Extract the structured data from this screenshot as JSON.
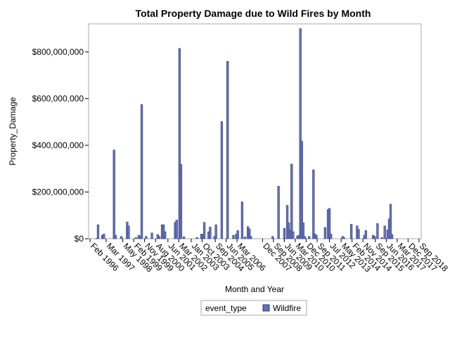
{
  "chart_data": {
    "type": "bar",
    "title": "Total Property Damage due to Wild Fires by Month",
    "xlabel": "Month and Year",
    "ylabel": "Property_Damage",
    "ylim": [
      0,
      920000000
    ],
    "y_ticks": [
      0,
      200000000,
      400000000,
      600000000,
      800000000
    ],
    "y_tick_labels": [
      "$0",
      "$200,000,000",
      "$400,000,000",
      "$600,000,000",
      "$800,000,000"
    ],
    "x_range": [
      1996.0,
      2018.85
    ],
    "x_tick_labels": [
      "Feb 1996",
      "Mar 1997",
      "May 1998",
      "Feb 1999",
      "Nov 1999",
      "Aug 2000",
      "Jun 2001",
      "Mar 2002",
      "Jan 2003",
      "Oct 2003",
      "Sep 2004",
      "Jun 2005",
      "Mar 2006",
      "Dec 2007",
      "Sep 2008",
      "Jun 2009",
      "Mar 2010",
      "Dec 2010",
      "Sep 2011",
      "Jul 2012",
      "May 2013",
      "Feb 2014",
      "Nov 2014",
      "Sep 2015",
      "Jun 2016",
      "Mar 2017",
      "Dec 2017",
      "Sep 2018"
    ],
    "x_tick_positions": [
      1996.1,
      1997.2,
      1998.35,
      1999.1,
      1999.85,
      2000.6,
      2001.45,
      2002.2,
      2003.05,
      2003.8,
      2004.7,
      2005.45,
      2006.2,
      2007.95,
      2008.7,
      2009.45,
      2010.2,
      2010.95,
      2011.7,
      2012.55,
      2013.35,
      2014.1,
      2014.85,
      2015.7,
      2016.45,
      2017.2,
      2017.95,
      2018.7
    ],
    "legend_title": "event_type",
    "legend": [
      "Wildfire"
    ],
    "series": [
      {
        "name": "Wildfire",
        "color": "#6672b0",
        "edge_color": "#2d3a7a",
        "points": [
          [
            1996.55,
            1000000
          ],
          [
            1996.65,
            60000000
          ],
          [
            1996.95,
            15000000
          ],
          [
            1997.05,
            20000000
          ],
          [
            1997.75,
            380000000
          ],
          [
            1997.85,
            15000000
          ],
          [
            1998.25,
            10000000
          ],
          [
            1998.65,
            72000000
          ],
          [
            1998.75,
            55000000
          ],
          [
            1999.25,
            5000000
          ],
          [
            1999.45,
            15000000
          ],
          [
            1999.55,
            10000000
          ],
          [
            1999.65,
            575000000
          ],
          [
            1999.95,
            10000000
          ],
          [
            2000.35,
            25000000
          ],
          [
            2000.75,
            18000000
          ],
          [
            2000.85,
            10000000
          ],
          [
            2001.05,
            60000000
          ],
          [
            2001.15,
            60000000
          ],
          [
            2001.25,
            30000000
          ],
          [
            2001.95,
            70000000
          ],
          [
            2002.05,
            80000000
          ],
          [
            2002.25,
            815000000
          ],
          [
            2002.35,
            318000000
          ],
          [
            2002.55,
            8000000
          ],
          [
            2003.45,
            5000000
          ],
          [
            2003.75,
            20000000
          ],
          [
            2003.85,
            18000000
          ],
          [
            2003.95,
            70000000
          ],
          [
            2004.25,
            30000000
          ],
          [
            2004.35,
            50000000
          ],
          [
            2004.65,
            10000000
          ],
          [
            2004.75,
            60000000
          ],
          [
            2005.15,
            502000000
          ],
          [
            2005.55,
            760000000
          ],
          [
            2005.95,
            15000000
          ],
          [
            2006.15,
            20000000
          ],
          [
            2006.25,
            35000000
          ],
          [
            2006.55,
            158000000
          ],
          [
            2006.75,
            8000000
          ],
          [
            2006.95,
            52000000
          ],
          [
            2007.05,
            42000000
          ],
          [
            2007.15,
            10000000
          ],
          [
            2008.65,
            10000000
          ],
          [
            2009.05,
            225000000
          ],
          [
            2009.45,
            45000000
          ],
          [
            2009.65,
            143000000
          ],
          [
            2009.75,
            68000000
          ],
          [
            2009.85,
            37000000
          ],
          [
            2009.95,
            320000000
          ],
          [
            2010.05,
            30000000
          ],
          [
            2010.35,
            12000000
          ],
          [
            2010.45,
            15000000
          ],
          [
            2010.55,
            900000000
          ],
          [
            2010.65,
            418000000
          ],
          [
            2010.75,
            68000000
          ],
          [
            2010.85,
            10000000
          ],
          [
            2011.15,
            10000000
          ],
          [
            2011.45,
            295000000
          ],
          [
            2011.55,
            20000000
          ],
          [
            2011.65,
            15000000
          ],
          [
            2012.25,
            48000000
          ],
          [
            2012.45,
            125000000
          ],
          [
            2012.55,
            130000000
          ],
          [
            2012.65,
            20000000
          ],
          [
            2013.45,
            10000000
          ],
          [
            2013.55,
            5000000
          ],
          [
            2014.05,
            62000000
          ],
          [
            2014.45,
            55000000
          ],
          [
            2014.55,
            40000000
          ],
          [
            2014.95,
            15000000
          ],
          [
            2015.05,
            35000000
          ],
          [
            2015.55,
            15000000
          ],
          [
            2015.65,
            10000000
          ],
          [
            2015.85,
            65000000
          ],
          [
            2016.15,
            5000000
          ],
          [
            2016.35,
            55000000
          ],
          [
            2016.55,
            38000000
          ],
          [
            2016.65,
            85000000
          ],
          [
            2016.75,
            148000000
          ],
          [
            2016.85,
            18000000
          ]
        ]
      }
    ]
  }
}
